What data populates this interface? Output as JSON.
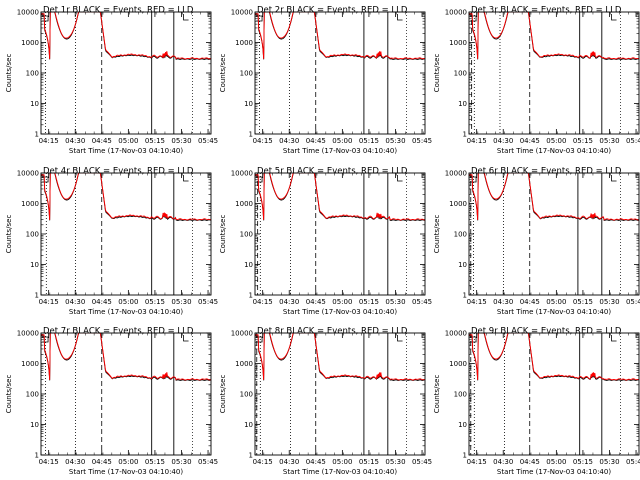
{
  "layout": {
    "rows": 3,
    "cols": 3
  },
  "axes": {
    "ylabel": "Counts/sec",
    "xlabel": "Start Time (17-Nov-03 04:10:40)",
    "y_scale": "log",
    "ylim": [
      1,
      10000
    ],
    "y_ticks": [
      1,
      10,
      100,
      1000,
      10000
    ],
    "y_tick_labels": [
      "1",
      "10",
      "100",
      "1000",
      "10000"
    ],
    "x_tick_labels": [
      "04:15",
      "04:30",
      "04:45",
      "05:00",
      "05:15",
      "05:30",
      "05:45"
    ],
    "x_tick_minutes": [
      4.33,
      19.33,
      34.33,
      49.33,
      64.33,
      79.33,
      94.33
    ]
  },
  "colors": {
    "events": "#000000",
    "lld": "#ff0000",
    "frame": "#000000"
  },
  "chart_data": [
    {
      "type": "line",
      "title": "Det 1r BLACK = Events, RED = LLD",
      "series": [
        {
          "name": "Events"
        },
        {
          "name": "LLD"
        }
      ]
    },
    {
      "type": "line",
      "title": "Det 2r BLACK = Events, RED = LLD",
      "series": [
        {
          "name": "Events"
        },
        {
          "name": "LLD"
        }
      ]
    },
    {
      "type": "line",
      "title": "Det 3r BLACK = Events, RED = LLD",
      "series": [
        {
          "name": "Events"
        },
        {
          "name": "LLD"
        }
      ]
    },
    {
      "type": "line",
      "title": "Det 4r BLACK = Events, RED = LLD",
      "series": [
        {
          "name": "Events"
        },
        {
          "name": "LLD"
        }
      ]
    },
    {
      "type": "line",
      "title": "Det 5r BLACK = Events, RED = LLD",
      "series": [
        {
          "name": "Events"
        },
        {
          "name": "LLD"
        }
      ]
    },
    {
      "type": "line",
      "title": "Det 6r BLACK = Events, RED = LLD",
      "series": [
        {
          "name": "Events"
        },
        {
          "name": "LLD"
        }
      ]
    },
    {
      "type": "line",
      "title": "Det 7r BLACK = Events, RED = LLD",
      "series": [
        {
          "name": "Events"
        },
        {
          "name": "LLD"
        }
      ]
    },
    {
      "type": "line",
      "title": "Det 8r BLACK = Events, RED = LLD",
      "series": [
        {
          "name": "Events"
        },
        {
          "name": "LLD"
        }
      ]
    },
    {
      "type": "line",
      "title": "Det 9r BLACK = Events, RED = LLD",
      "series": [
        {
          "name": "Events"
        },
        {
          "name": "LLD"
        }
      ]
    }
  ]
}
